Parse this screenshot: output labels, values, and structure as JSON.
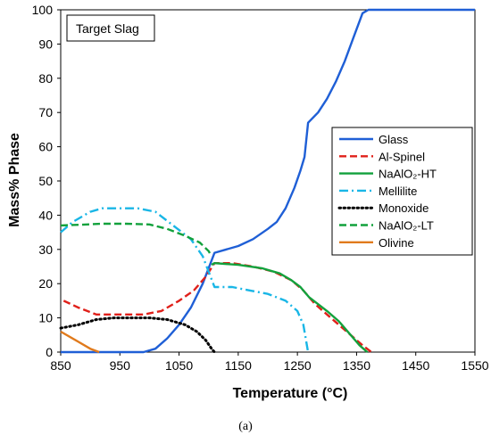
{
  "chart_data": {
    "type": "line",
    "title": "",
    "xlabel": "Temperature (°C)",
    "ylabel": "Mass% Phase",
    "xlim": [
      850,
      1550
    ],
    "ylim": [
      0,
      100
    ],
    "xticks": [
      850,
      950,
      1050,
      1150,
      1250,
      1350,
      1450,
      1550
    ],
    "yticks": [
      0,
      10,
      20,
      30,
      40,
      50,
      60,
      70,
      80,
      90,
      100
    ],
    "grid": false,
    "legend_position": "center-right",
    "annotation": "Target Slag",
    "caption": "(a)",
    "series": [
      {
        "name": "Glass",
        "color": "#1f5fd6",
        "dash": "solid",
        "points": [
          [
            850,
            0
          ],
          [
            990,
            0
          ],
          [
            1010,
            1
          ],
          [
            1030,
            4
          ],
          [
            1050,
            8
          ],
          [
            1070,
            13
          ],
          [
            1090,
            20
          ],
          [
            1110,
            29
          ],
          [
            1130,
            30
          ],
          [
            1150,
            31
          ],
          [
            1175,
            33
          ],
          [
            1200,
            36
          ],
          [
            1215,
            38
          ],
          [
            1230,
            42
          ],
          [
            1245,
            48
          ],
          [
            1255,
            53
          ],
          [
            1262,
            57
          ],
          [
            1268,
            67
          ],
          [
            1285,
            70
          ],
          [
            1300,
            74
          ],
          [
            1315,
            79
          ],
          [
            1330,
            85
          ],
          [
            1345,
            92
          ],
          [
            1360,
            99
          ],
          [
            1370,
            100
          ],
          [
            1550,
            100
          ]
        ]
      },
      {
        "name": "Al-Spinel",
        "color": "#e0201a",
        "dash": "dashed",
        "points": [
          [
            855,
            15
          ],
          [
            880,
            13
          ],
          [
            910,
            11
          ],
          [
            950,
            11
          ],
          [
            990,
            11
          ],
          [
            1020,
            12
          ],
          [
            1050,
            15
          ],
          [
            1075,
            18
          ],
          [
            1095,
            22
          ],
          [
            1110,
            26
          ],
          [
            1140,
            26
          ],
          [
            1175,
            25
          ],
          [
            1210,
            23.5
          ],
          [
            1240,
            21
          ],
          [
            1260,
            18
          ],
          [
            1280,
            14
          ],
          [
            1300,
            11
          ],
          [
            1320,
            8
          ],
          [
            1340,
            5
          ],
          [
            1360,
            2
          ],
          [
            1375,
            0
          ]
        ]
      },
      {
        "name": "NaAlO₂-HT",
        "color": "#12a13c",
        "dash": "solid",
        "points": [
          [
            1105,
            25.5
          ],
          [
            1110,
            26
          ],
          [
            1150,
            25.5
          ],
          [
            1190,
            24.5
          ],
          [
            1220,
            23
          ],
          [
            1240,
            21
          ],
          [
            1255,
            19
          ],
          [
            1270,
            16
          ],
          [
            1300,
            12
          ],
          [
            1320,
            9
          ],
          [
            1340,
            5
          ],
          [
            1355,
            2
          ],
          [
            1368,
            0
          ]
        ]
      },
      {
        "name": "Mellilite",
        "color": "#19b6e6",
        "dash": "dashdot",
        "points": [
          [
            850,
            35
          ],
          [
            870,
            38
          ],
          [
            900,
            41
          ],
          [
            920,
            42
          ],
          [
            950,
            42
          ],
          [
            980,
            42
          ],
          [
            1010,
            41
          ],
          [
            1040,
            37
          ],
          [
            1070,
            33
          ],
          [
            1090,
            28
          ],
          [
            1110,
            19
          ],
          [
            1140,
            19
          ],
          [
            1170,
            18
          ],
          [
            1200,
            17
          ],
          [
            1230,
            15
          ],
          [
            1250,
            12
          ],
          [
            1260,
            8
          ],
          [
            1265,
            3
          ],
          [
            1268,
            0
          ]
        ]
      },
      {
        "name": "Monoxide",
        "color": "#000000",
        "dash": "dotted",
        "points": [
          [
            850,
            7
          ],
          [
            880,
            8
          ],
          [
            910,
            9.5
          ],
          [
            940,
            10
          ],
          [
            970,
            10
          ],
          [
            1000,
            10
          ],
          [
            1030,
            9.5
          ],
          [
            1060,
            8
          ],
          [
            1080,
            6
          ],
          [
            1095,
            3.5
          ],
          [
            1105,
            1
          ],
          [
            1110,
            0
          ]
        ]
      },
      {
        "name": "NaAlO₂-LT",
        "color": "#12a13c",
        "dash": "dashed",
        "points": [
          [
            850,
            37
          ],
          [
            880,
            37.2
          ],
          [
            920,
            37.5
          ],
          [
            960,
            37.5
          ],
          [
            1000,
            37.3
          ],
          [
            1030,
            36
          ],
          [
            1060,
            34
          ],
          [
            1085,
            32
          ],
          [
            1100,
            29.5
          ],
          [
            1105,
            28
          ]
        ]
      },
      {
        "name": "Olivine",
        "color": "#e07a1c",
        "dash": "solid",
        "points": [
          [
            850,
            6
          ],
          [
            880,
            3
          ],
          [
            900,
            1
          ],
          [
            915,
            0
          ]
        ]
      }
    ]
  }
}
